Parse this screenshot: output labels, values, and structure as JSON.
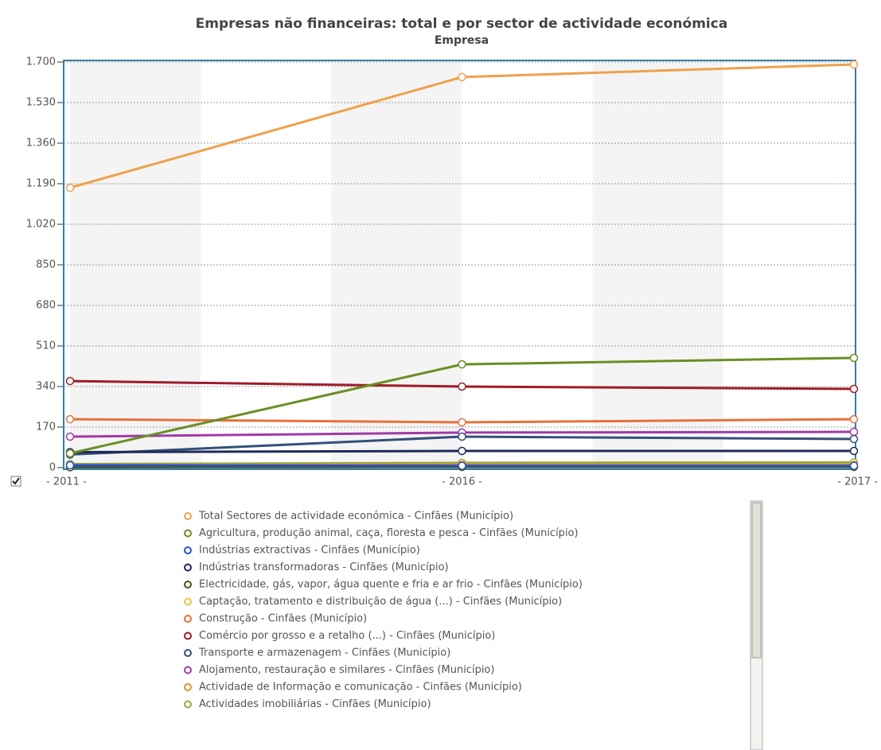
{
  "chart_data": {
    "type": "line",
    "title": "Empresas não financeiras: total e por sector de actividade económica",
    "subtitle": "Empresa",
    "categories": [
      "- 2011 -",
      "- 2016 -",
      "- 2017 -"
    ],
    "ylim": [
      0,
      1700
    ],
    "yticks": [
      0,
      170,
      340,
      {
        "value": 510,
        "label": "510"
      },
      680,
      850,
      {
        "value": 1020,
        "label": "1.020"
      },
      {
        "value": 1190,
        "label": "1.190"
      },
      {
        "value": 1360,
        "label": "1.360"
      },
      {
        "value": 1530,
        "label": "1.530"
      },
      {
        "value": 1700,
        "label": "1.700"
      }
    ],
    "grid": true,
    "series": [
      {
        "name": "Total Sectores de actividade económica - Cinfães (Município)",
        "color": "#f0a04b",
        "values": [
          1173,
          1637,
          1690
        ]
      },
      {
        "name": "Agricultura, produção animal, caça, floresta e pesca - Cinfães (Município)",
        "color": "#6b8e23",
        "values": [
          60,
          433,
          460
        ]
      },
      {
        "name": "Indústrias extractivas - Cinfães (Município)",
        "color": "#2b50c8",
        "values": [
          10,
          8,
          8
        ]
      },
      {
        "name": "Indústrias transformadoras - Cinfães (Município)",
        "color": "#1f2a5a",
        "values": [
          65,
          70,
          70
        ]
      },
      {
        "name": "Electricidade, gás, vapor, água quente e fria e ar frio - Cinfães (Município)",
        "color": "#3d5a1e",
        "values": [
          2,
          3,
          3
        ]
      },
      {
        "name": "Captação, tratamento e distribuição de água (...) - Cinfães (Município)",
        "color": "#e8c840",
        "values": [
          2,
          3,
          3
        ]
      },
      {
        "name": "Construção - Cinfães (Município)",
        "color": "#e8703a",
        "values": [
          203,
          190,
          203
        ]
      },
      {
        "name": "Comércio por grosso e a retalho (...) - Cinfães (Município)",
        "color": "#a01c28",
        "values": [
          363,
          340,
          330
        ]
      },
      {
        "name": "Transporte e armazenagem - Cinfães (Município)",
        "color": "#34507a",
        "values": [
          55,
          130,
          120
        ]
      },
      {
        "name": "Alojamento, restauração e similares - Cinfães (Município)",
        "color": "#a03aa8",
        "values": [
          130,
          147,
          150
        ]
      },
      {
        "name": "Actividade de Informação e comunicação - Cinfães (Município)",
        "color": "#e0902a",
        "values": [
          10,
          12,
          12
        ]
      },
      {
        "name": "Actividades imobiliárias - Cinfães (Município)",
        "color": "#9aaa3a",
        "values": [
          15,
          20,
          22
        ]
      }
    ]
  }
}
